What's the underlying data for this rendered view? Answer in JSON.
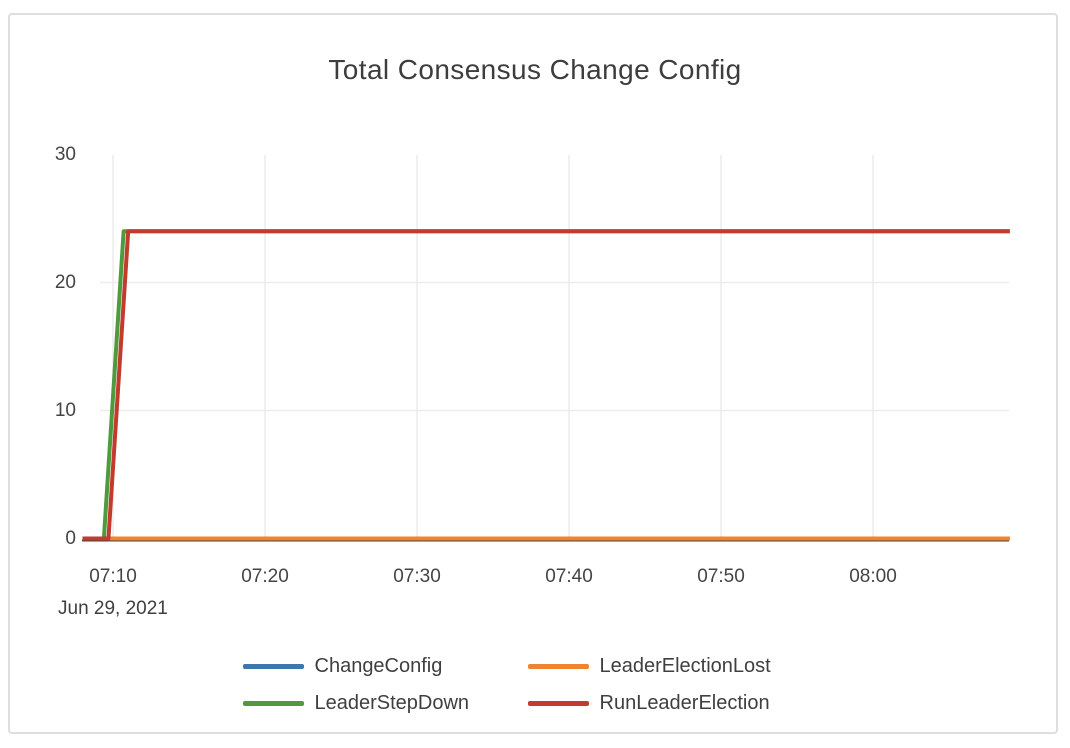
{
  "chart_data": {
    "type": "line",
    "title": "Total Consensus Change Config",
    "x_axis": {
      "date_label": "Jun 29, 2021",
      "ticks": [
        "07:10",
        "07:20",
        "07:30",
        "07:40",
        "07:50",
        "08:00"
      ]
    },
    "y_axis": {
      "ticks": [
        0,
        10,
        20,
        30
      ],
      "ylim": [
        0,
        30
      ]
    },
    "grid": "on",
    "legend_position": "bottom",
    "x_range": [
      "07:08:00",
      "08:09:00"
    ],
    "series": [
      {
        "name": "ChangeConfig",
        "color": "#3c77ad",
        "points": [
          [
            "07:08:00",
            0
          ],
          [
            "08:09:00",
            0
          ]
        ]
      },
      {
        "name": "LeaderElectionLost",
        "color": "#ee8432",
        "points": [
          [
            "07:08:00",
            0
          ],
          [
            "08:09:00",
            0
          ]
        ]
      },
      {
        "name": "LeaderStepDown",
        "color": "#4f9a3c",
        "points": [
          [
            "07:08:00",
            0
          ],
          [
            "07:09:24",
            0
          ],
          [
            "07:10:42",
            24
          ],
          [
            "08:09:00",
            24
          ]
        ]
      },
      {
        "name": "RunLeaderElection",
        "color": "#c23b2c",
        "points": [
          [
            "07:08:00",
            0
          ],
          [
            "07:09:42",
            0
          ],
          [
            "07:11:00",
            24
          ],
          [
            "08:09:00",
            24
          ]
        ]
      }
    ],
    "colors": {
      "gridline": "#ececec",
      "axis_line": "#444444",
      "tick_text": "#444444",
      "title_text": "#3d3d3d"
    }
  }
}
